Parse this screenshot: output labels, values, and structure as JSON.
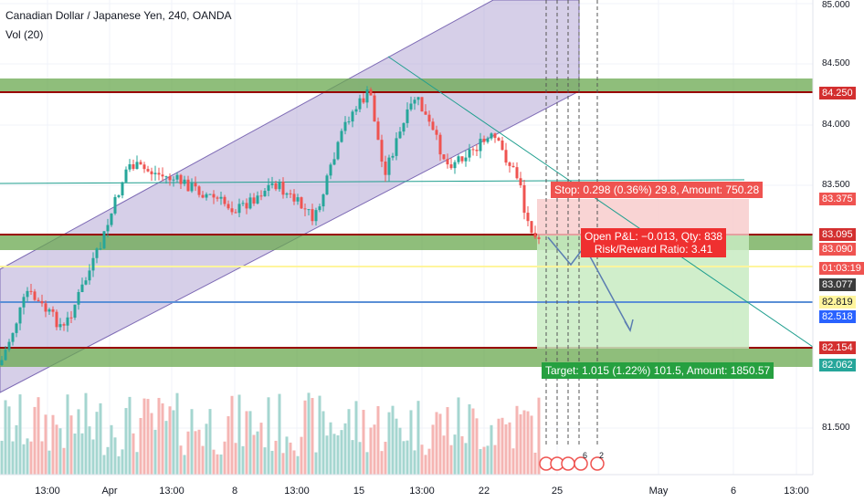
{
  "header": {
    "title": "Canadian Dollar / Japanese Yen, 240, OANDA",
    "volume_label": "Vol (20)"
  },
  "axis": {
    "price_ticks": [
      "85.000",
      "84.500",
      "84.000",
      "83.500",
      "81.500"
    ],
    "time_ticks": [
      "13:00",
      "Apr",
      "13:00",
      "8",
      "13:00",
      "15",
      "13:00",
      "22",
      "25",
      "May",
      "6",
      "13:00"
    ]
  },
  "price_tags": [
    {
      "value": "84.250",
      "color": "#d32f2f"
    },
    {
      "value": "83.375",
      "color": "#ef5350"
    },
    {
      "value": "83.095",
      "color": "#d32f2f"
    },
    {
      "value": "83.090",
      "color": "#ef5350"
    },
    {
      "value": "01:03:19",
      "color": "#ef5350"
    },
    {
      "value": "83.077",
      "color": "#3c3c3c"
    },
    {
      "value": "82.819",
      "color": "#fff59d"
    },
    {
      "value": "82.518",
      "color": "#2962ff"
    },
    {
      "value": "82.154",
      "color": "#d32f2f"
    },
    {
      "value": "82.062",
      "color": "#26a69a"
    }
  ],
  "position": {
    "stop_label": "Stop: 0.298 (0.36%) 29.8, Amount: 750.28",
    "pnl_label": "Open P&L: −0.013, Qty: 838",
    "rr_label": "Risk/Reward Ratio: 3.41",
    "target_label": "Target: 1.015 (1.22%) 101.5, Amount: 1850.57"
  },
  "markers": {
    "count_a": "6",
    "count_b": "2"
  },
  "colors": {
    "bull": "#26a69a",
    "bear": "#ef5350",
    "zone_green": "#6aa84f",
    "channel": "#b4a7d6",
    "resistance": "#990000"
  }
}
